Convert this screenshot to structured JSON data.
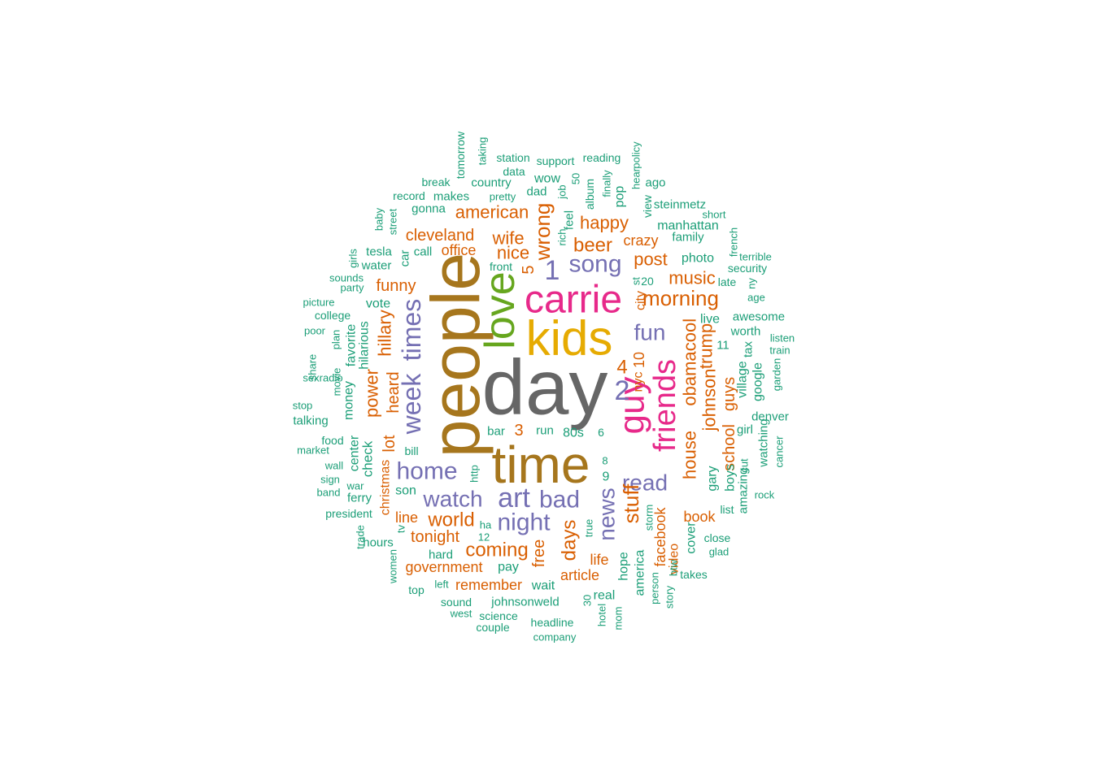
{
  "wordcloud": {
    "palette": {
      "teal": "#1B9E77",
      "orange": "#D95F02",
      "purple": "#7570B3",
      "pink": "#E7298A",
      "green": "#66A61E",
      "gold": "#E6AB02",
      "brown": "#A6761D",
      "gray": "#666666"
    },
    "words": [
      {
        "text": "day",
        "color": "gray"
      },
      {
        "text": "people",
        "color": "brown"
      },
      {
        "text": "time",
        "color": "brown"
      },
      {
        "text": "kids",
        "color": "gold"
      },
      {
        "text": "carrie",
        "color": "pink"
      },
      {
        "text": "love",
        "color": "green"
      },
      {
        "text": "guy",
        "color": "pink"
      },
      {
        "text": "friends",
        "color": "pink"
      },
      {
        "text": "week",
        "color": "purple"
      },
      {
        "text": "times",
        "color": "purple"
      },
      {
        "text": "home",
        "color": "purple"
      },
      {
        "text": "art",
        "color": "purple"
      },
      {
        "text": "watch",
        "color": "purple"
      },
      {
        "text": "bad",
        "color": "purple"
      },
      {
        "text": "night",
        "color": "purple"
      },
      {
        "text": "song",
        "color": "purple"
      },
      {
        "text": "fun",
        "color": "purple"
      },
      {
        "text": "news",
        "color": "purple"
      },
      {
        "text": "read",
        "color": "purple"
      },
      {
        "text": "2",
        "color": "purple"
      },
      {
        "text": "1",
        "color": "purple"
      },
      {
        "text": "beer",
        "color": "orange"
      },
      {
        "text": "morning",
        "color": "orange"
      },
      {
        "text": "music",
        "color": "orange"
      },
      {
        "text": "house",
        "color": "orange"
      },
      {
        "text": "obama",
        "color": "orange"
      },
      {
        "text": "cool",
        "color": "orange"
      },
      {
        "text": "stuff",
        "color": "orange"
      },
      {
        "text": "days",
        "color": "orange"
      },
      {
        "text": "coming",
        "color": "orange"
      },
      {
        "text": "world",
        "color": "orange"
      },
      {
        "text": "wrong",
        "color": "orange"
      },
      {
        "text": "happy",
        "color": "orange"
      },
      {
        "text": "american",
        "color": "orange"
      },
      {
        "text": "cleveland",
        "color": "orange"
      },
      {
        "text": "wife",
        "color": "orange"
      },
      {
        "text": "nice",
        "color": "orange"
      },
      {
        "text": "post",
        "color": "orange"
      },
      {
        "text": "crazy",
        "color": "orange"
      },
      {
        "text": "johnson",
        "color": "orange"
      },
      {
        "text": "trump",
        "color": "orange"
      },
      {
        "text": "school",
        "color": "orange"
      },
      {
        "text": "guys",
        "color": "orange"
      },
      {
        "text": "hillary",
        "color": "orange"
      },
      {
        "text": "heard",
        "color": "orange"
      },
      {
        "text": "power",
        "color": "orange"
      },
      {
        "text": "funny",
        "color": "orange"
      },
      {
        "text": "lot",
        "color": "orange"
      },
      {
        "text": "christmas",
        "color": "orange"
      },
      {
        "text": "tonight",
        "color": "orange"
      },
      {
        "text": "line",
        "color": "orange"
      },
      {
        "text": "free",
        "color": "orange"
      },
      {
        "text": "life",
        "color": "orange"
      },
      {
        "text": "article",
        "color": "orange"
      },
      {
        "text": "remember",
        "color": "orange"
      },
      {
        "text": "government",
        "color": "orange"
      },
      {
        "text": "facebook",
        "color": "orange"
      },
      {
        "text": "book",
        "color": "orange"
      },
      {
        "text": "office",
        "color": "orange"
      },
      {
        "text": "city",
        "color": "orange"
      },
      {
        "text": "nyc",
        "color": "orange"
      },
      {
        "text": "4",
        "color": "orange"
      },
      {
        "text": "3",
        "color": "orange"
      },
      {
        "text": "5",
        "color": "orange"
      },
      {
        "text": "10",
        "color": "orange"
      },
      {
        "text": "video",
        "color": "orange"
      },
      {
        "text": "tomorrow",
        "color": "teal"
      },
      {
        "text": "taking",
        "color": "teal"
      },
      {
        "text": "station",
        "color": "teal"
      },
      {
        "text": "support",
        "color": "teal"
      },
      {
        "text": "reading",
        "color": "teal"
      },
      {
        "text": "data",
        "color": "teal"
      },
      {
        "text": "break",
        "color": "teal"
      },
      {
        "text": "country",
        "color": "teal"
      },
      {
        "text": "wow",
        "color": "teal"
      },
      {
        "text": "record",
        "color": "teal"
      },
      {
        "text": "makes",
        "color": "teal"
      },
      {
        "text": "pretty",
        "color": "teal"
      },
      {
        "text": "dad",
        "color": "teal"
      },
      {
        "text": "gonna",
        "color": "teal"
      },
      {
        "text": "album",
        "color": "teal"
      },
      {
        "text": "finally",
        "color": "teal"
      },
      {
        "text": "pop",
        "color": "teal"
      },
      {
        "text": "hear",
        "color": "teal"
      },
      {
        "text": "policy",
        "color": "teal"
      },
      {
        "text": "ago",
        "color": "teal"
      },
      {
        "text": "view",
        "color": "teal"
      },
      {
        "text": "steinmetz",
        "color": "teal"
      },
      {
        "text": "manhattan",
        "color": "teal"
      },
      {
        "text": "short",
        "color": "teal"
      },
      {
        "text": "family",
        "color": "teal"
      },
      {
        "text": "job",
        "color": "teal"
      },
      {
        "text": "50",
        "color": "teal"
      },
      {
        "text": "feel",
        "color": "teal"
      },
      {
        "text": "rich",
        "color": "teal"
      },
      {
        "text": "baby",
        "color": "teal"
      },
      {
        "text": "street",
        "color": "teal"
      },
      {
        "text": "tesla",
        "color": "teal"
      },
      {
        "text": "car",
        "color": "teal"
      },
      {
        "text": "call",
        "color": "teal"
      },
      {
        "text": "girls",
        "color": "teal"
      },
      {
        "text": "water",
        "color": "teal"
      },
      {
        "text": "front",
        "color": "teal"
      },
      {
        "text": "sounds",
        "color": "teal"
      },
      {
        "text": "party",
        "color": "teal"
      },
      {
        "text": "photo",
        "color": "teal"
      },
      {
        "text": "french",
        "color": "teal"
      },
      {
        "text": "terrible",
        "color": "teal"
      },
      {
        "text": "security",
        "color": "teal"
      },
      {
        "text": "late",
        "color": "teal"
      },
      {
        "text": "ny",
        "color": "teal"
      },
      {
        "text": "age",
        "color": "teal"
      },
      {
        "text": "st",
        "color": "teal"
      },
      {
        "text": "20",
        "color": "teal"
      },
      {
        "text": "picture",
        "color": "teal"
      },
      {
        "text": "college",
        "color": "teal"
      },
      {
        "text": "vote",
        "color": "teal"
      },
      {
        "text": "poor",
        "color": "teal"
      },
      {
        "text": "plan",
        "color": "teal"
      },
      {
        "text": "favorite",
        "color": "teal"
      },
      {
        "text": "hilarious",
        "color": "teal"
      },
      {
        "text": "live",
        "color": "teal"
      },
      {
        "text": "awesome",
        "color": "teal"
      },
      {
        "text": "worth",
        "color": "teal"
      },
      {
        "text": "listen",
        "color": "teal"
      },
      {
        "text": "train",
        "color": "teal"
      },
      {
        "text": "garden",
        "color": "teal"
      },
      {
        "text": "share",
        "color": "teal"
      },
      {
        "text": "sexradio",
        "color": "teal"
      },
      {
        "text": "movie",
        "color": "teal"
      },
      {
        "text": "money",
        "color": "teal"
      },
      {
        "text": "11",
        "color": "teal"
      },
      {
        "text": "tax",
        "color": "teal"
      },
      {
        "text": "village",
        "color": "teal"
      },
      {
        "text": "google",
        "color": "teal"
      },
      {
        "text": "stop",
        "color": "teal"
      },
      {
        "text": "talking",
        "color": "teal"
      },
      {
        "text": "denver",
        "color": "teal"
      },
      {
        "text": "girl",
        "color": "teal"
      },
      {
        "text": "watching",
        "color": "teal"
      },
      {
        "text": "cancer",
        "color": "teal"
      },
      {
        "text": "food",
        "color": "teal"
      },
      {
        "text": "center",
        "color": "teal"
      },
      {
        "text": "check",
        "color": "teal"
      },
      {
        "text": "bar",
        "color": "teal"
      },
      {
        "text": "run",
        "color": "teal"
      },
      {
        "text": "80s",
        "color": "teal"
      },
      {
        "text": "6",
        "color": "teal"
      },
      {
        "text": "market",
        "color": "teal"
      },
      {
        "text": "bill",
        "color": "teal"
      },
      {
        "text": "gary",
        "color": "teal"
      },
      {
        "text": "boys",
        "color": "teal"
      },
      {
        "text": "amazing",
        "color": "teal"
      },
      {
        "text": "cut",
        "color": "teal"
      },
      {
        "text": "wall",
        "color": "teal"
      },
      {
        "text": "sign",
        "color": "teal"
      },
      {
        "text": "http",
        "color": "teal"
      },
      {
        "text": "8",
        "color": "teal"
      },
      {
        "text": "9",
        "color": "teal"
      },
      {
        "text": "rock",
        "color": "teal"
      },
      {
        "text": "band",
        "color": "teal"
      },
      {
        "text": "war",
        "color": "teal"
      },
      {
        "text": "son",
        "color": "teal"
      },
      {
        "text": "ferry",
        "color": "teal"
      },
      {
        "text": "list",
        "color": "teal"
      },
      {
        "text": "president",
        "color": "teal"
      },
      {
        "text": "storm",
        "color": "teal"
      },
      {
        "text": "cover",
        "color": "teal"
      },
      {
        "text": "close",
        "color": "teal"
      },
      {
        "text": "trade",
        "color": "teal"
      },
      {
        "text": "tv",
        "color": "teal"
      },
      {
        "text": "ha",
        "color": "teal"
      },
      {
        "text": "12",
        "color": "teal"
      },
      {
        "text": "true",
        "color": "teal"
      },
      {
        "text": "hours",
        "color": "teal"
      },
      {
        "text": "hard",
        "color": "teal"
      },
      {
        "text": "pay",
        "color": "teal"
      },
      {
        "text": "hope",
        "color": "teal"
      },
      {
        "text": "america",
        "color": "teal"
      },
      {
        "text": "btw",
        "color": "teal"
      },
      {
        "text": "glad",
        "color": "teal"
      },
      {
        "text": "women",
        "color": "teal"
      },
      {
        "text": "wait",
        "color": "teal"
      },
      {
        "text": "takes",
        "color": "teal"
      },
      {
        "text": "top",
        "color": "teal"
      },
      {
        "text": "left",
        "color": "teal"
      },
      {
        "text": "person",
        "color": "teal"
      },
      {
        "text": "story",
        "color": "teal"
      },
      {
        "text": "real",
        "color": "teal"
      },
      {
        "text": "30",
        "color": "teal"
      },
      {
        "text": "johnsonweld",
        "color": "teal"
      },
      {
        "text": "sound",
        "color": "teal"
      },
      {
        "text": "hotel",
        "color": "teal"
      },
      {
        "text": "mom",
        "color": "teal"
      },
      {
        "text": "west",
        "color": "teal"
      },
      {
        "text": "science",
        "color": "teal"
      },
      {
        "text": "headline",
        "color": "teal"
      },
      {
        "text": "couple",
        "color": "teal"
      },
      {
        "text": "company",
        "color": "teal"
      }
    ]
  }
}
